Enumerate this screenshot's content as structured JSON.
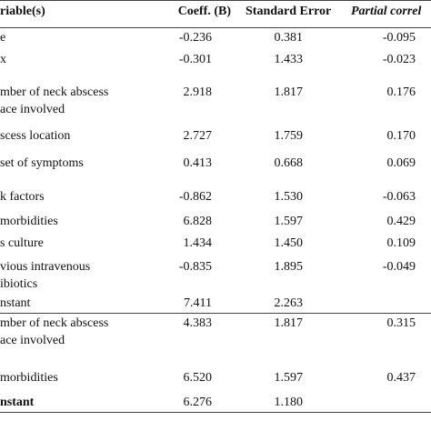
{
  "table": {
    "headers": [
      "riable(s)",
      "Coeff. (B)",
      "Standard Error",
      "Partial correl"
    ],
    "model1_rows": [
      {
        "variable_lines": [
          "e"
        ],
        "coeff": "-0.236",
        "se": "0.381",
        "partial": "-0.095"
      },
      {
        "variable_lines": [
          "x"
        ],
        "coeff": "-0.301",
        "se": "1.433",
        "partial": "-0.023"
      },
      {
        "variable_lines": [
          "mber of neck abscess",
          "ace involved"
        ],
        "coeff": "2.918",
        "se": "1.817",
        "partial": "0.176"
      },
      {
        "variable_lines": [
          "scess location"
        ],
        "coeff": "2.727",
        "se": "1.759",
        "partial": "0.170"
      },
      {
        "variable_lines": [
          "set of symptoms"
        ],
        "coeff": "0.413",
        "se": "0.668",
        "partial": "0.069"
      },
      {
        "variable_lines": [
          "k factors"
        ],
        "coeff": "-0.862",
        "se": "1.530",
        "partial": "-0.063"
      },
      {
        "variable_lines": [
          "morbidities"
        ],
        "coeff": "6.828",
        "se": "1.597",
        "partial": "0.429"
      },
      {
        "variable_lines": [
          "s culture"
        ],
        "coeff": "1.434",
        "se": "1.450",
        "partial": "0.109"
      },
      {
        "variable_lines": [
          "vious intravenous",
          "ibiotics"
        ],
        "coeff": "-0.835",
        "se": "1.895",
        "partial": "-0.049"
      },
      {
        "variable_lines": [
          "nstant"
        ],
        "coeff": "7.411",
        "se": "2.263",
        "partial": ""
      }
    ],
    "model2_rows": [
      {
        "variable_lines": [
          "mber of neck abscess",
          "ace involved"
        ],
        "coeff": "4.383",
        "se": "1.817",
        "partial": "0.315"
      },
      {
        "variable_lines": [
          "morbidities"
        ],
        "coeff": "6.520",
        "se": "1.597",
        "partial": "0.437"
      },
      {
        "variable_lines": [
          "nstant"
        ],
        "coeff": "6.276",
        "se": "1.180",
        "partial": ""
      }
    ]
  }
}
